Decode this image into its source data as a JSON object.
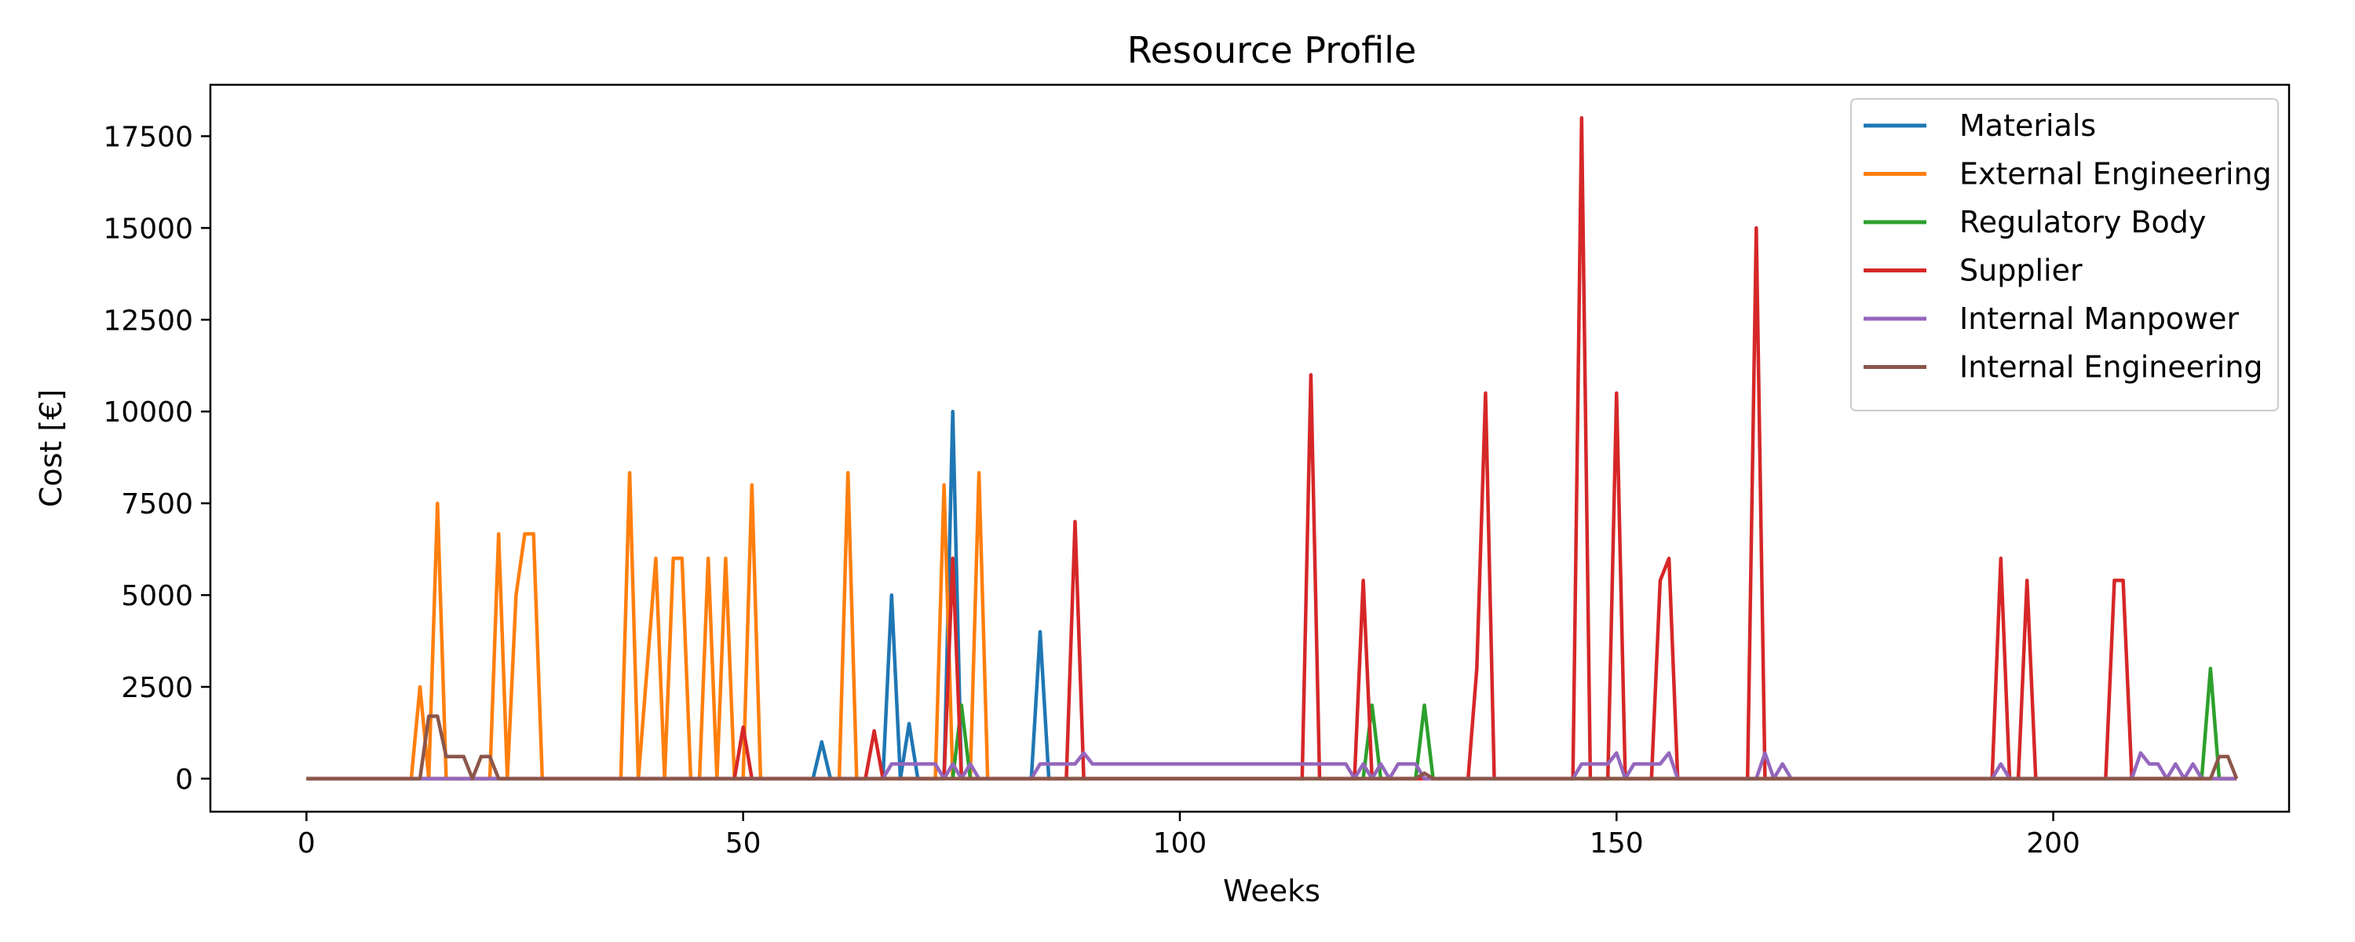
{
  "chart_data": {
    "type": "line",
    "title": "Resource Profile",
    "xlabel": "Weeks",
    "ylabel": "Cost [€]",
    "xlim": [
      -11,
      227
    ],
    "ylim": [
      -900,
      18900
    ],
    "xticks": [
      0,
      50,
      100,
      150,
      200
    ],
    "yticks": [
      0,
      2500,
      5000,
      7500,
      10000,
      12500,
      15000,
      17500
    ],
    "grid": false,
    "legend_position": "top-right",
    "series": [
      {
        "name": "Materials",
        "color": "#1f77b4",
        "points": [
          [
            0,
            0
          ],
          [
            58,
            0
          ],
          [
            59,
            1000
          ],
          [
            60,
            0
          ],
          [
            66,
            0
          ],
          [
            67,
            5000
          ],
          [
            68,
            0
          ],
          [
            69,
            1500
          ],
          [
            70,
            0
          ],
          [
            73,
            0
          ],
          [
            74,
            10000
          ],
          [
            75,
            0
          ],
          [
            83,
            0
          ],
          [
            84,
            4000
          ],
          [
            85,
            0
          ],
          [
            221,
            0
          ]
        ]
      },
      {
        "name": "External Engineering",
        "color": "#ff7f0e",
        "points": [
          [
            0,
            0
          ],
          [
            12,
            0
          ],
          [
            13,
            2500
          ],
          [
            14,
            0
          ],
          [
            15,
            7500
          ],
          [
            16,
            0
          ],
          [
            21,
            0
          ],
          [
            22,
            6667
          ],
          [
            23,
            0
          ],
          [
            24,
            5000
          ],
          [
            25,
            6667
          ],
          [
            26,
            6667
          ],
          [
            27,
            0
          ],
          [
            36,
            0
          ],
          [
            37,
            8333
          ],
          [
            38,
            0
          ],
          [
            40,
            6000
          ],
          [
            41,
            0
          ],
          [
            42,
            6000
          ],
          [
            43,
            6000
          ],
          [
            44,
            0
          ],
          [
            45,
            0
          ],
          [
            46,
            6000
          ],
          [
            47,
            0
          ],
          [
            48,
            6000
          ],
          [
            49,
            0
          ],
          [
            50,
            0
          ],
          [
            51,
            8000
          ],
          [
            52,
            0
          ],
          [
            61,
            0
          ],
          [
            62,
            8333
          ],
          [
            63,
            0
          ],
          [
            72,
            0
          ],
          [
            73,
            8000
          ],
          [
            74,
            0
          ],
          [
            76,
            0
          ],
          [
            77,
            8333
          ],
          [
            78,
            0
          ],
          [
            221,
            0
          ]
        ]
      },
      {
        "name": "Regulatory Body",
        "color": "#2ca02c",
        "points": [
          [
            0,
            0
          ],
          [
            74,
            0
          ],
          [
            75,
            2000
          ],
          [
            76,
            0
          ],
          [
            121,
            0
          ],
          [
            122,
            2000
          ],
          [
            123,
            0
          ],
          [
            127,
            0
          ],
          [
            128,
            2000
          ],
          [
            129,
            0
          ],
          [
            217,
            0
          ],
          [
            218,
            3000
          ],
          [
            219,
            0
          ],
          [
            221,
            0
          ]
        ]
      },
      {
        "name": "Supplier",
        "color": "#d62728",
        "points": [
          [
            0,
            0
          ],
          [
            49,
            0
          ],
          [
            50,
            1400
          ],
          [
            51,
            0
          ],
          [
            64,
            0
          ],
          [
            65,
            1300
          ],
          [
            66,
            0
          ],
          [
            73,
            0
          ],
          [
            74,
            6000
          ],
          [
            75,
            0
          ],
          [
            87,
            0
          ],
          [
            88,
            7000
          ],
          [
            89,
            0
          ],
          [
            114,
            0
          ],
          [
            115,
            11000
          ],
          [
            116,
            0
          ],
          [
            120,
            0
          ],
          [
            121,
            5400
          ],
          [
            122,
            0
          ],
          [
            133,
            0
          ],
          [
            134,
            3000
          ],
          [
            135,
            10500
          ],
          [
            136,
            0
          ],
          [
            145,
            0
          ],
          [
            146,
            18000
          ],
          [
            147,
            0
          ],
          [
            149,
            0
          ],
          [
            150,
            10500
          ],
          [
            151,
            0
          ],
          [
            154,
            0
          ],
          [
            155,
            5400
          ],
          [
            156,
            6000
          ],
          [
            157,
            0
          ],
          [
            165,
            0
          ],
          [
            166,
            15000
          ],
          [
            167,
            0
          ],
          [
            193,
            0
          ],
          [
            194,
            6000
          ],
          [
            195,
            0
          ],
          [
            196,
            0
          ],
          [
            197,
            5400
          ],
          [
            198,
            0
          ],
          [
            206,
            0
          ],
          [
            207,
            5400
          ],
          [
            208,
            5400
          ],
          [
            209,
            0
          ],
          [
            221,
            0
          ]
        ]
      },
      {
        "name": "Internal Manpower",
        "color": "#9467bd",
        "points": [
          [
            0,
            0
          ],
          [
            66,
            0
          ],
          [
            67,
            400
          ],
          [
            68,
            400
          ],
          [
            72,
            400
          ],
          [
            73,
            0
          ],
          [
            74,
            400
          ],
          [
            75,
            0
          ],
          [
            76,
            400
          ],
          [
            77,
            0
          ],
          [
            83,
            0
          ],
          [
            84,
            400
          ],
          [
            85,
            400
          ],
          [
            87,
            400
          ],
          [
            88,
            400
          ],
          [
            89,
            700
          ],
          [
            90,
            400
          ],
          [
            119,
            400
          ],
          [
            120,
            0
          ],
          [
            121,
            400
          ],
          [
            122,
            0
          ],
          [
            123,
            400
          ],
          [
            124,
            0
          ],
          [
            125,
            400
          ],
          [
            127,
            400
          ],
          [
            128,
            0
          ],
          [
            145,
            0
          ],
          [
            146,
            400
          ],
          [
            149,
            400
          ],
          [
            150,
            700
          ],
          [
            151,
            0
          ],
          [
            152,
            400
          ],
          [
            155,
            400
          ],
          [
            156,
            700
          ],
          [
            157,
            0
          ],
          [
            165,
            0
          ],
          [
            166,
            0
          ],
          [
            167,
            700
          ],
          [
            168,
            0
          ],
          [
            169,
            400
          ],
          [
            170,
            0
          ],
          [
            193,
            0
          ],
          [
            194,
            400
          ],
          [
            195,
            0
          ],
          [
            208,
            0
          ],
          [
            209,
            0
          ],
          [
            210,
            700
          ],
          [
            211,
            400
          ],
          [
            212,
            400
          ],
          [
            213,
            0
          ],
          [
            214,
            400
          ],
          [
            215,
            0
          ],
          [
            216,
            400
          ],
          [
            217,
            0
          ],
          [
            221,
            0
          ]
        ]
      },
      {
        "name": "Internal Engineering",
        "color": "#8c564b",
        "points": [
          [
            0,
            0
          ],
          [
            13,
            0
          ],
          [
            14,
            1700
          ],
          [
            15,
            1700
          ],
          [
            16,
            600
          ],
          [
            18,
            600
          ],
          [
            19,
            0
          ],
          [
            20,
            600
          ],
          [
            21,
            600
          ],
          [
            22,
            0
          ],
          [
            127,
            0
          ],
          [
            128,
            150
          ],
          [
            129,
            0
          ],
          [
            218,
            0
          ],
          [
            219,
            600
          ],
          [
            220,
            600
          ],
          [
            221,
            0
          ]
        ]
      }
    ]
  }
}
